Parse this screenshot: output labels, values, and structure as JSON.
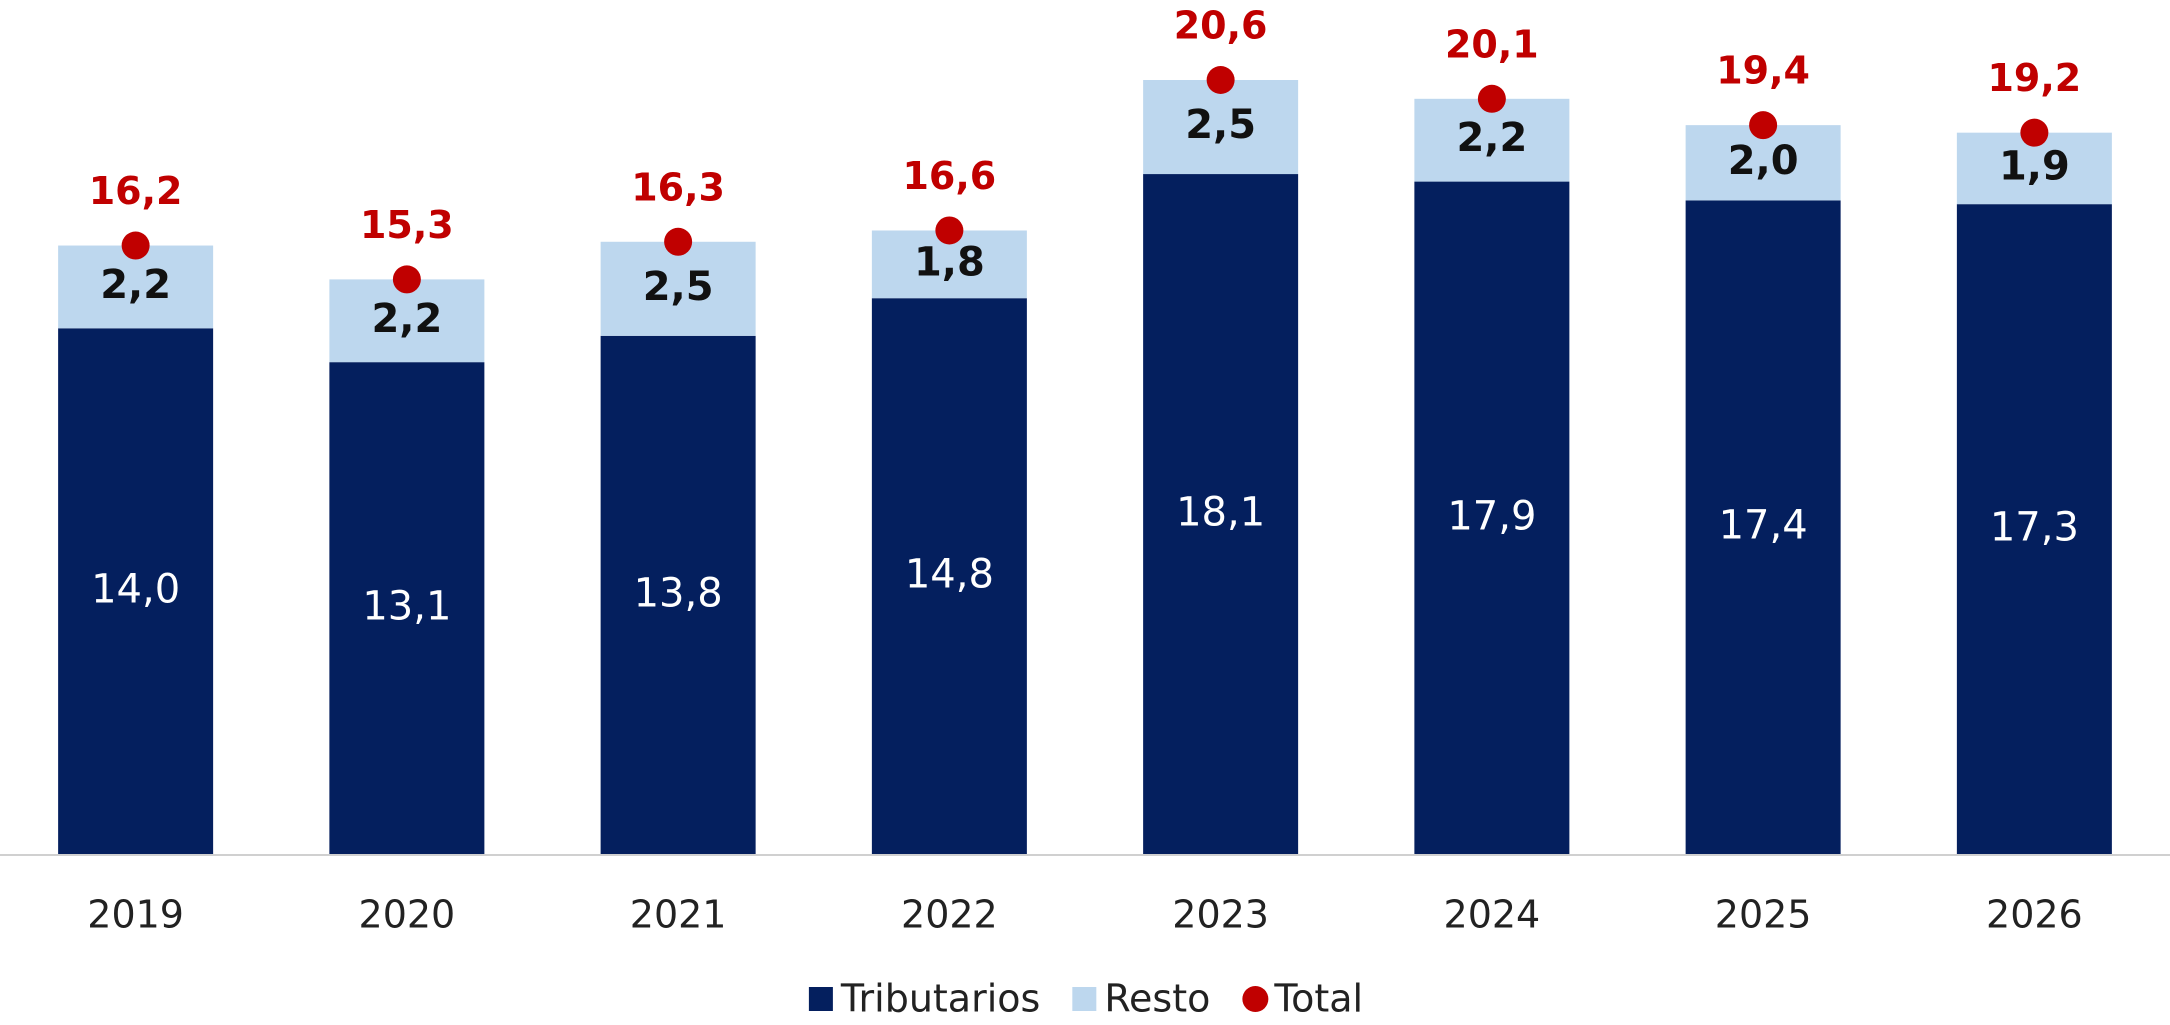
{
  "chart_data": {
    "type": "bar",
    "stacked": true,
    "categories": [
      "2019",
      "2020",
      "2021",
      "2022",
      "2023",
      "2024",
      "2025",
      "2026"
    ],
    "series": [
      {
        "name": "Tributarios",
        "color": "#041f5e",
        "values": [
          14.0,
          13.1,
          13.8,
          14.8,
          18.1,
          17.9,
          17.4,
          17.3
        ],
        "value_labels": [
          "14,0",
          "13,1",
          "13,8",
          "14,8",
          "18,1",
          "17,9",
          "17,4",
          "17,3"
        ]
      },
      {
        "name": "Resto",
        "color": "#bdd7ee",
        "values": [
          2.2,
          2.2,
          2.5,
          1.8,
          2.5,
          2.2,
          2.0,
          1.9
        ],
        "value_labels": [
          "2,2",
          "2,2",
          "2,5",
          "1,8",
          "2,5",
          "2,2",
          "2,0",
          "1,9"
        ]
      },
      {
        "name": "Total",
        "color": "#c00000",
        "type": "dot",
        "values": [
          16.2,
          15.3,
          16.3,
          16.6,
          20.6,
          20.1,
          19.4,
          19.2
        ],
        "value_labels": [
          "16,2",
          "15,3",
          "16,3",
          "16,6",
          "20,6",
          "20,1",
          "19,4",
          "19,2"
        ]
      }
    ]
  }
}
